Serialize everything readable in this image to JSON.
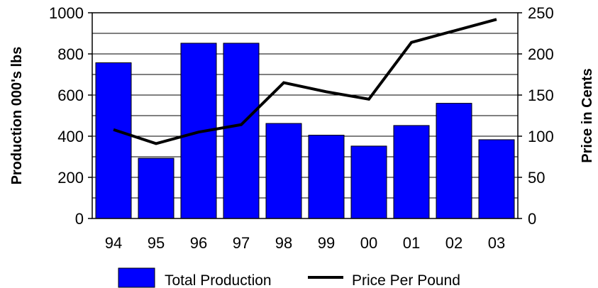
{
  "chart_data": {
    "type": "bar",
    "categories": [
      "94",
      "95",
      "96",
      "97",
      "98",
      "99",
      "00",
      "01",
      "02",
      "03"
    ],
    "series": [
      {
        "name": "Total Production",
        "type": "bar",
        "axis": "left",
        "color": "#0000ff",
        "values": [
          757,
          293,
          852,
          852,
          462,
          405,
          352,
          452,
          560,
          383
        ]
      },
      {
        "name": "Price Per Pound",
        "type": "line",
        "axis": "right",
        "color": "#000000",
        "values": [
          108,
          91,
          105,
          114,
          165,
          154,
          145,
          214,
          228,
          242
        ]
      }
    ],
    "ylabel": "Production 000's lbs",
    "y2label": "Price in Cents",
    "ylim": [
      0,
      1000
    ],
    "y2lim": [
      0,
      250
    ],
    "yticks": [
      "0",
      "200",
      "400",
      "600",
      "800",
      "1000"
    ],
    "y2ticks": [
      "0",
      "50",
      "100",
      "150",
      "200",
      "250"
    ],
    "grid": true,
    "legend_position": "bottom",
    "bar_color": "#0000ff",
    "line_color": "#000000"
  }
}
